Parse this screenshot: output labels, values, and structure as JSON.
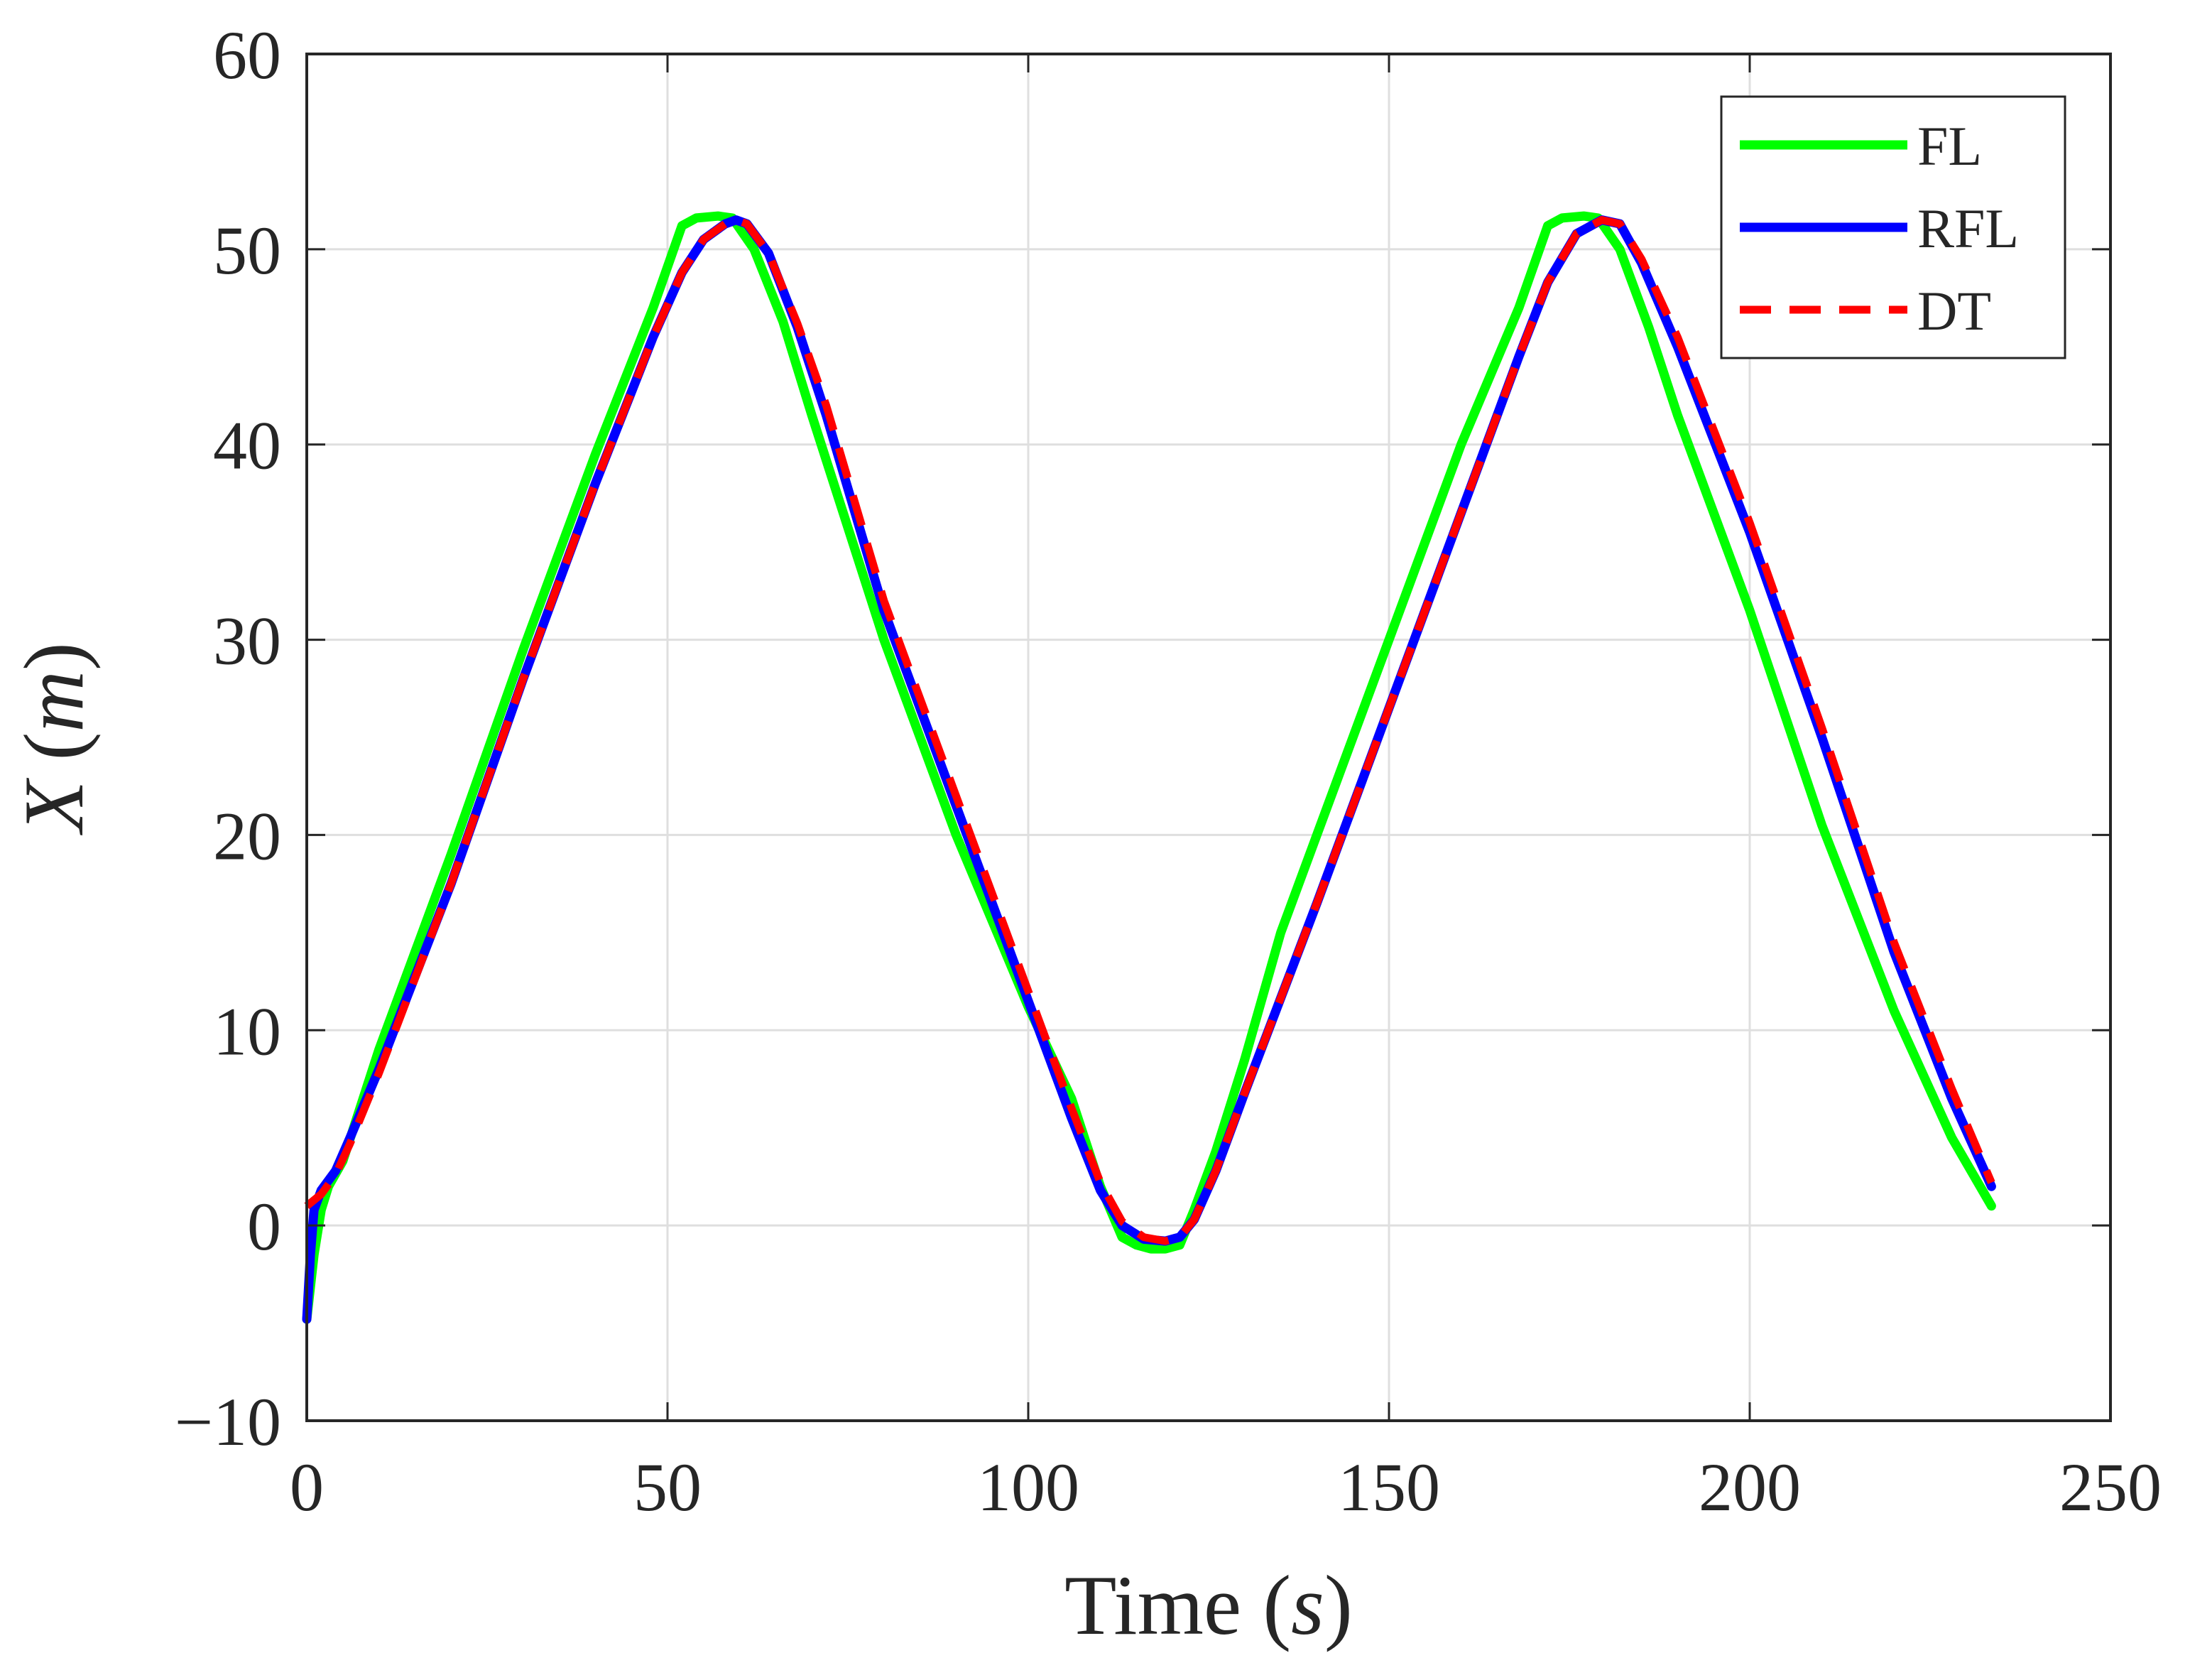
{
  "chart_data": {
    "type": "line",
    "title": "",
    "xlabel": "Time (s)",
    "xlabel_plain": "Time (",
    "xlabel_var": "s",
    "xlabel_close": ")",
    "ylabel_var": "X",
    "ylabel_open": "(",
    "ylabel_unit": "m",
    "ylabel_close": ")",
    "xlim": [
      0,
      250
    ],
    "ylim": [
      -10,
      60
    ],
    "xticks": [
      0,
      50,
      100,
      150,
      200,
      250
    ],
    "yticks": [
      -10,
      0,
      10,
      20,
      30,
      40,
      50,
      60
    ],
    "xtick_labels": [
      "0",
      "50",
      "100",
      "150",
      "200",
      "250"
    ],
    "ytick_labels": [
      "−10",
      "0",
      "10",
      "20",
      "30",
      "40",
      "50",
      "60"
    ],
    "grid": true,
    "legend_position": "top-right",
    "series": [
      {
        "name": "FL",
        "color": "#00ff00",
        "style": "solid",
        "x": [
          0,
          1,
          2,
          3,
          5,
          10,
          20,
          30,
          40,
          48,
          52,
          54,
          57,
          59,
          62,
          66,
          70,
          80,
          90,
          100,
          106,
          110,
          113,
          115,
          117,
          119,
          121,
          123,
          126,
          130,
          135,
          140,
          150,
          160,
          168,
          172,
          174,
          177,
          179,
          182,
          186,
          190,
          200,
          210,
          220,
          228,
          233.5
        ],
        "y": [
          -4.8,
          -1.5,
          0.8,
          2.0,
          3.3,
          9.0,
          19.0,
          29.5,
          39.5,
          47.0,
          51.2,
          51.6,
          51.7,
          51.6,
          50.0,
          46.3,
          41.5,
          30.0,
          20.0,
          11.2,
          6.5,
          2.0,
          -0.6,
          -1.0,
          -1.2,
          -1.2,
          -1.0,
          0.8,
          3.8,
          8.5,
          15.0,
          20.0,
          30.0,
          40.0,
          47.0,
          51.2,
          51.6,
          51.7,
          51.6,
          50.0,
          46.0,
          41.5,
          31.5,
          20.5,
          11.0,
          4.5,
          1.0
        ]
      },
      {
        "name": "RFL",
        "color": "#0000ff",
        "style": "solid",
        "x": [
          0,
          0.5,
          1,
          2,
          4,
          6,
          10,
          20,
          30,
          40,
          48,
          52,
          55,
          58,
          59.5,
          61,
          64,
          68,
          72,
          80,
          90,
          100,
          106,
          110,
          113,
          116,
          119,
          121,
          123,
          126,
          130,
          140,
          150,
          160,
          168,
          172,
          176,
          179.5,
          182,
          185,
          190,
          200,
          210,
          220,
          228,
          233.5
        ],
        "y": [
          -4.8,
          -1.5,
          0.8,
          1.8,
          2.8,
          4.5,
          8.0,
          17.5,
          28.0,
          38.0,
          45.5,
          48.8,
          50.5,
          51.3,
          51.5,
          51.3,
          49.8,
          46.0,
          41.5,
          31.5,
          21.5,
          11.5,
          5.5,
          1.8,
          0.0,
          -0.7,
          -0.8,
          -0.6,
          0.3,
          2.8,
          6.8,
          16.5,
          26.5,
          36.5,
          44.5,
          48.3,
          50.8,
          51.5,
          51.3,
          49.3,
          45.0,
          35.5,
          25.0,
          14.0,
          6.5,
          2.0
        ]
      },
      {
        "name": "DT",
        "color": "#ff0000",
        "style": "dashed",
        "x": [
          0,
          2,
          4,
          6,
          10,
          20,
          30,
          40,
          48,
          52,
          55,
          58,
          59.5,
          61,
          64,
          68,
          72,
          80,
          90,
          100,
          106,
          110,
          113,
          116,
          119,
          121,
          123,
          126,
          130,
          140,
          150,
          160,
          168,
          172,
          176,
          179.5,
          182,
          185,
          190,
          200,
          210,
          220,
          228,
          233.5
        ],
        "y": [
          1.0,
          1.6,
          2.6,
          4.2,
          7.8,
          17.5,
          28.0,
          38.0,
          45.5,
          48.8,
          50.5,
          51.3,
          51.5,
          51.3,
          49.8,
          46.2,
          42.0,
          32.0,
          22.0,
          12.0,
          6.0,
          2.2,
          0.2,
          -0.6,
          -0.8,
          -0.6,
          0.3,
          2.8,
          6.8,
          16.5,
          26.5,
          36.5,
          44.5,
          48.3,
          50.8,
          51.5,
          51.3,
          49.5,
          45.5,
          36.0,
          25.5,
          14.5,
          7.0,
          2.2
        ]
      }
    ]
  }
}
